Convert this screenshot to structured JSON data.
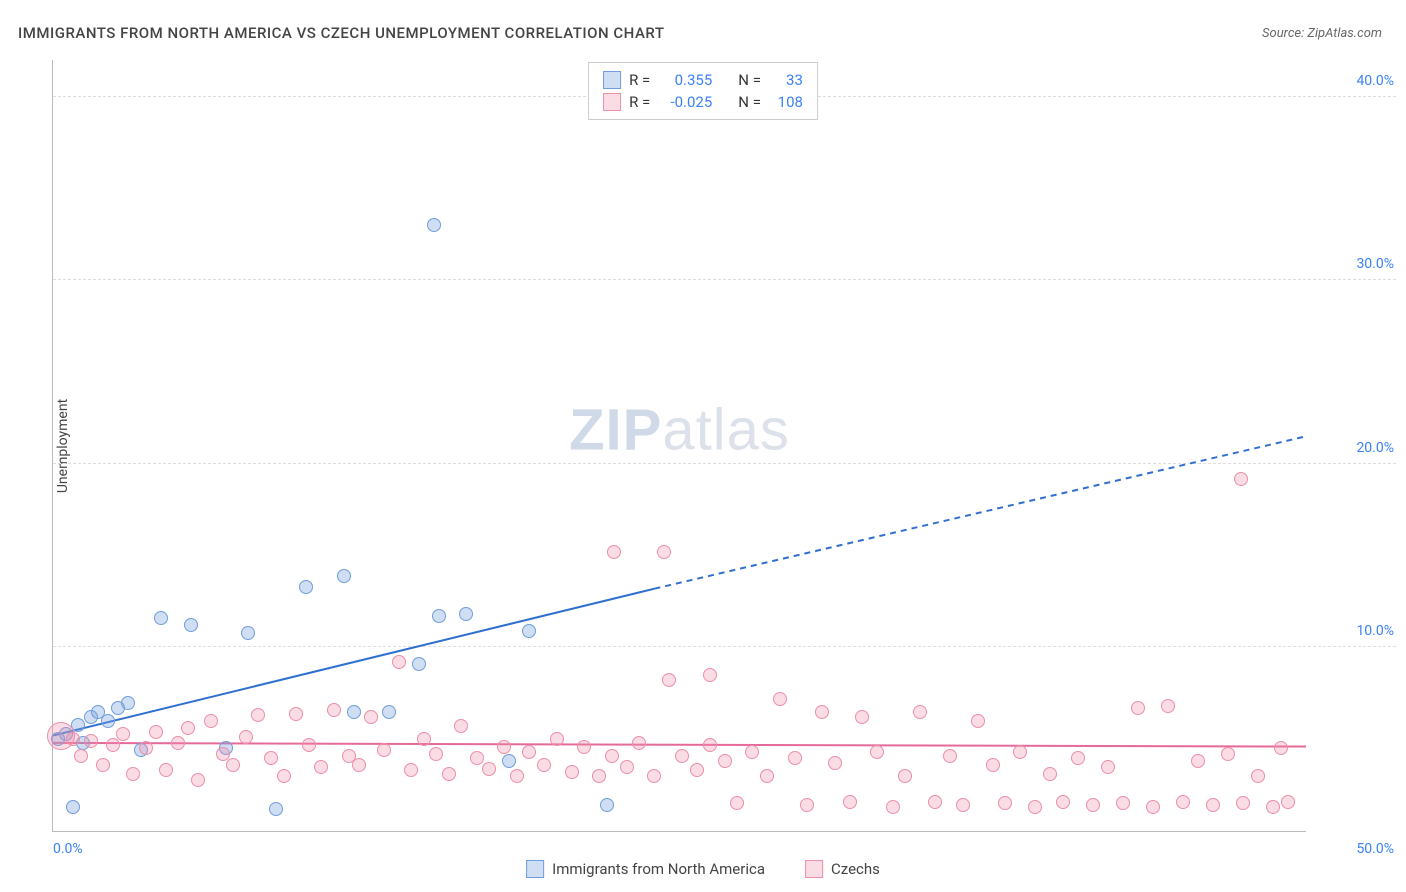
{
  "title": "IMMIGRANTS FROM NORTH AMERICA VS CZECH UNEMPLOYMENT CORRELATION CHART",
  "source_label": "Source: ZipAtlas.com",
  "ylabel": "Unemployment",
  "watermark": {
    "prefix": "ZIP",
    "suffix": "atlas"
  },
  "chart": {
    "type": "scatter",
    "xlim": [
      0,
      50
    ],
    "ylim": [
      0,
      42
    ],
    "x_ticks": [
      {
        "value": 0,
        "label": "0.0%"
      },
      {
        "value": 50,
        "label": "50.0%"
      }
    ],
    "y_ticks": [
      {
        "value": 10,
        "label": "10.0%"
      },
      {
        "value": 20,
        "label": "20.0%"
      },
      {
        "value": 30,
        "label": "30.0%"
      },
      {
        "value": 40,
        "label": "40.0%"
      }
    ],
    "background_color": "#ffffff",
    "grid_color": "#dddddd",
    "axis_color": "#bbbbbb",
    "tick_label_color": "#3b82f6",
    "series": [
      {
        "id": "immigrants_na",
        "label": "Immigrants from North America",
        "fill_color": "rgba(120,160,220,0.35)",
        "stroke_color": "#6f9edb",
        "marker_radius": 7,
        "R": "0.355",
        "N": "33",
        "trend": {
          "x1": 0,
          "y1": 5.2,
          "x2": 24,
          "y2": 13.2,
          "dash_x2": 50,
          "dash_y2": 21.5,
          "color": "#2f6fd0",
          "width": 2
        },
        "points": [
          {
            "x": 0.2,
            "y": 5.0
          },
          {
            "x": 0.5,
            "y": 5.3
          },
          {
            "x": 0.8,
            "y": 1.3
          },
          {
            "x": 1.0,
            "y": 5.8
          },
          {
            "x": 1.2,
            "y": 4.8
          },
          {
            "x": 1.5,
            "y": 6.2
          },
          {
            "x": 1.8,
            "y": 6.5
          },
          {
            "x": 2.2,
            "y": 6.0
          },
          {
            "x": 2.6,
            "y": 6.7
          },
          {
            "x": 3.0,
            "y": 7.0
          },
          {
            "x": 3.5,
            "y": 4.4
          },
          {
            "x": 4.3,
            "y": 11.6
          },
          {
            "x": 5.5,
            "y": 11.2
          },
          {
            "x": 6.9,
            "y": 4.5
          },
          {
            "x": 7.8,
            "y": 10.8
          },
          {
            "x": 8.9,
            "y": 1.2
          },
          {
            "x": 10.1,
            "y": 13.3
          },
          {
            "x": 11.6,
            "y": 13.9
          },
          {
            "x": 12.0,
            "y": 6.5
          },
          {
            "x": 13.4,
            "y": 6.5
          },
          {
            "x": 14.6,
            "y": 9.1
          },
          {
            "x": 15.2,
            "y": 33.0
          },
          {
            "x": 15.4,
            "y": 11.7
          },
          {
            "x": 16.5,
            "y": 11.8
          },
          {
            "x": 18.2,
            "y": 3.8
          },
          {
            "x": 19.0,
            "y": 10.9
          },
          {
            "x": 22.1,
            "y": 1.4
          }
        ]
      },
      {
        "id": "czechs",
        "label": "Czechs",
        "fill_color": "rgba(240,140,170,0.30)",
        "stroke_color": "#ec8fa9",
        "marker_radius": 7,
        "R": "-0.025",
        "N": "108",
        "trend": {
          "x1": 0,
          "y1": 4.8,
          "x2": 50,
          "y2": 4.6,
          "color": "#e56a9a",
          "width": 2
        },
        "points": [
          {
            "x": 0.3,
            "y": 5.2,
            "r": 14
          },
          {
            "x": 0.8,
            "y": 5.0
          },
          {
            "x": 1.1,
            "y": 4.1
          },
          {
            "x": 1.5,
            "y": 4.9
          },
          {
            "x": 2.0,
            "y": 3.6
          },
          {
            "x": 2.4,
            "y": 4.7
          },
          {
            "x": 2.8,
            "y": 5.3
          },
          {
            "x": 3.2,
            "y": 3.1
          },
          {
            "x": 3.7,
            "y": 4.5
          },
          {
            "x": 4.1,
            "y": 5.4
          },
          {
            "x": 4.5,
            "y": 3.3
          },
          {
            "x": 5.0,
            "y": 4.8
          },
          {
            "x": 5.4,
            "y": 5.6
          },
          {
            "x": 5.8,
            "y": 2.8
          },
          {
            "x": 6.3,
            "y": 6.0
          },
          {
            "x": 6.8,
            "y": 4.2
          },
          {
            "x": 7.2,
            "y": 3.6
          },
          {
            "x": 7.7,
            "y": 5.1
          },
          {
            "x": 8.2,
            "y": 6.3
          },
          {
            "x": 8.7,
            "y": 4.0
          },
          {
            "x": 9.2,
            "y": 3.0
          },
          {
            "x": 9.7,
            "y": 6.4
          },
          {
            "x": 10.2,
            "y": 4.7
          },
          {
            "x": 10.7,
            "y": 3.5
          },
          {
            "x": 11.2,
            "y": 6.6
          },
          {
            "x": 11.8,
            "y": 4.1
          },
          {
            "x": 12.2,
            "y": 3.6
          },
          {
            "x": 12.7,
            "y": 6.2
          },
          {
            "x": 13.2,
            "y": 4.4
          },
          {
            "x": 13.8,
            "y": 9.2
          },
          {
            "x": 14.3,
            "y": 3.3
          },
          {
            "x": 14.8,
            "y": 5.0
          },
          {
            "x": 15.3,
            "y": 4.2
          },
          {
            "x": 15.8,
            "y": 3.1
          },
          {
            "x": 16.3,
            "y": 5.7
          },
          {
            "x": 16.9,
            "y": 4.0
          },
          {
            "x": 17.4,
            "y": 3.4
          },
          {
            "x": 18.0,
            "y": 4.6
          },
          {
            "x": 18.5,
            "y": 3.0
          },
          {
            "x": 19.0,
            "y": 4.3
          },
          {
            "x": 19.6,
            "y": 3.6
          },
          {
            "x": 20.1,
            "y": 5.0
          },
          {
            "x": 20.7,
            "y": 3.2
          },
          {
            "x": 21.2,
            "y": 4.6
          },
          {
            "x": 21.8,
            "y": 3.0
          },
          {
            "x": 22.3,
            "y": 4.1
          },
          {
            "x": 22.4,
            "y": 15.2
          },
          {
            "x": 22.9,
            "y": 3.5
          },
          {
            "x": 23.4,
            "y": 4.8
          },
          {
            "x": 24.0,
            "y": 3.0
          },
          {
            "x": 24.4,
            "y": 15.2
          },
          {
            "x": 24.6,
            "y": 8.2
          },
          {
            "x": 25.1,
            "y": 4.1
          },
          {
            "x": 25.7,
            "y": 3.3
          },
          {
            "x": 26.2,
            "y": 8.5
          },
          {
            "x": 26.2,
            "y": 4.7
          },
          {
            "x": 26.8,
            "y": 3.8
          },
          {
            "x": 27.3,
            "y": 1.5
          },
          {
            "x": 27.9,
            "y": 4.3
          },
          {
            "x": 28.5,
            "y": 3.0
          },
          {
            "x": 29.0,
            "y": 7.2
          },
          {
            "x": 29.6,
            "y": 4.0
          },
          {
            "x": 30.1,
            "y": 1.4
          },
          {
            "x": 30.7,
            "y": 6.5
          },
          {
            "x": 31.2,
            "y": 3.7
          },
          {
            "x": 31.8,
            "y": 1.6
          },
          {
            "x": 32.3,
            "y": 6.2
          },
          {
            "x": 32.9,
            "y": 4.3
          },
          {
            "x": 33.5,
            "y": 1.3
          },
          {
            "x": 34.0,
            "y": 3.0
          },
          {
            "x": 34.6,
            "y": 6.5
          },
          {
            "x": 35.2,
            "y": 1.6
          },
          {
            "x": 35.8,
            "y": 4.1
          },
          {
            "x": 36.3,
            "y": 1.4
          },
          {
            "x": 36.9,
            "y": 6.0
          },
          {
            "x": 37.5,
            "y": 3.6
          },
          {
            "x": 38.0,
            "y": 1.5
          },
          {
            "x": 38.6,
            "y": 4.3
          },
          {
            "x": 39.2,
            "y": 1.3
          },
          {
            "x": 39.8,
            "y": 3.1
          },
          {
            "x": 40.3,
            "y": 1.6
          },
          {
            "x": 40.9,
            "y": 4.0
          },
          {
            "x": 41.5,
            "y": 1.4
          },
          {
            "x": 42.1,
            "y": 3.5
          },
          {
            "x": 42.7,
            "y": 1.5
          },
          {
            "x": 43.3,
            "y": 6.7
          },
          {
            "x": 43.9,
            "y": 1.3
          },
          {
            "x": 44.5,
            "y": 6.8
          },
          {
            "x": 45.1,
            "y": 1.6
          },
          {
            "x": 45.7,
            "y": 3.8
          },
          {
            "x": 46.3,
            "y": 1.4
          },
          {
            "x": 46.9,
            "y": 4.2
          },
          {
            "x": 47.4,
            "y": 19.2
          },
          {
            "x": 47.5,
            "y": 1.5
          },
          {
            "x": 48.1,
            "y": 3.0
          },
          {
            "x": 48.7,
            "y": 1.3
          },
          {
            "x": 49.0,
            "y": 4.5
          },
          {
            "x": 49.3,
            "y": 1.6
          }
        ]
      }
    ]
  },
  "legend_box": {
    "rows": [
      {
        "swatch": 0,
        "r_label": "R =",
        "r_val": "0.355",
        "n_label": "N =",
        "n_val": "33"
      },
      {
        "swatch": 1,
        "r_label": "R =",
        "r_val": "-0.025",
        "n_label": "N =",
        "n_val": "108"
      }
    ]
  }
}
